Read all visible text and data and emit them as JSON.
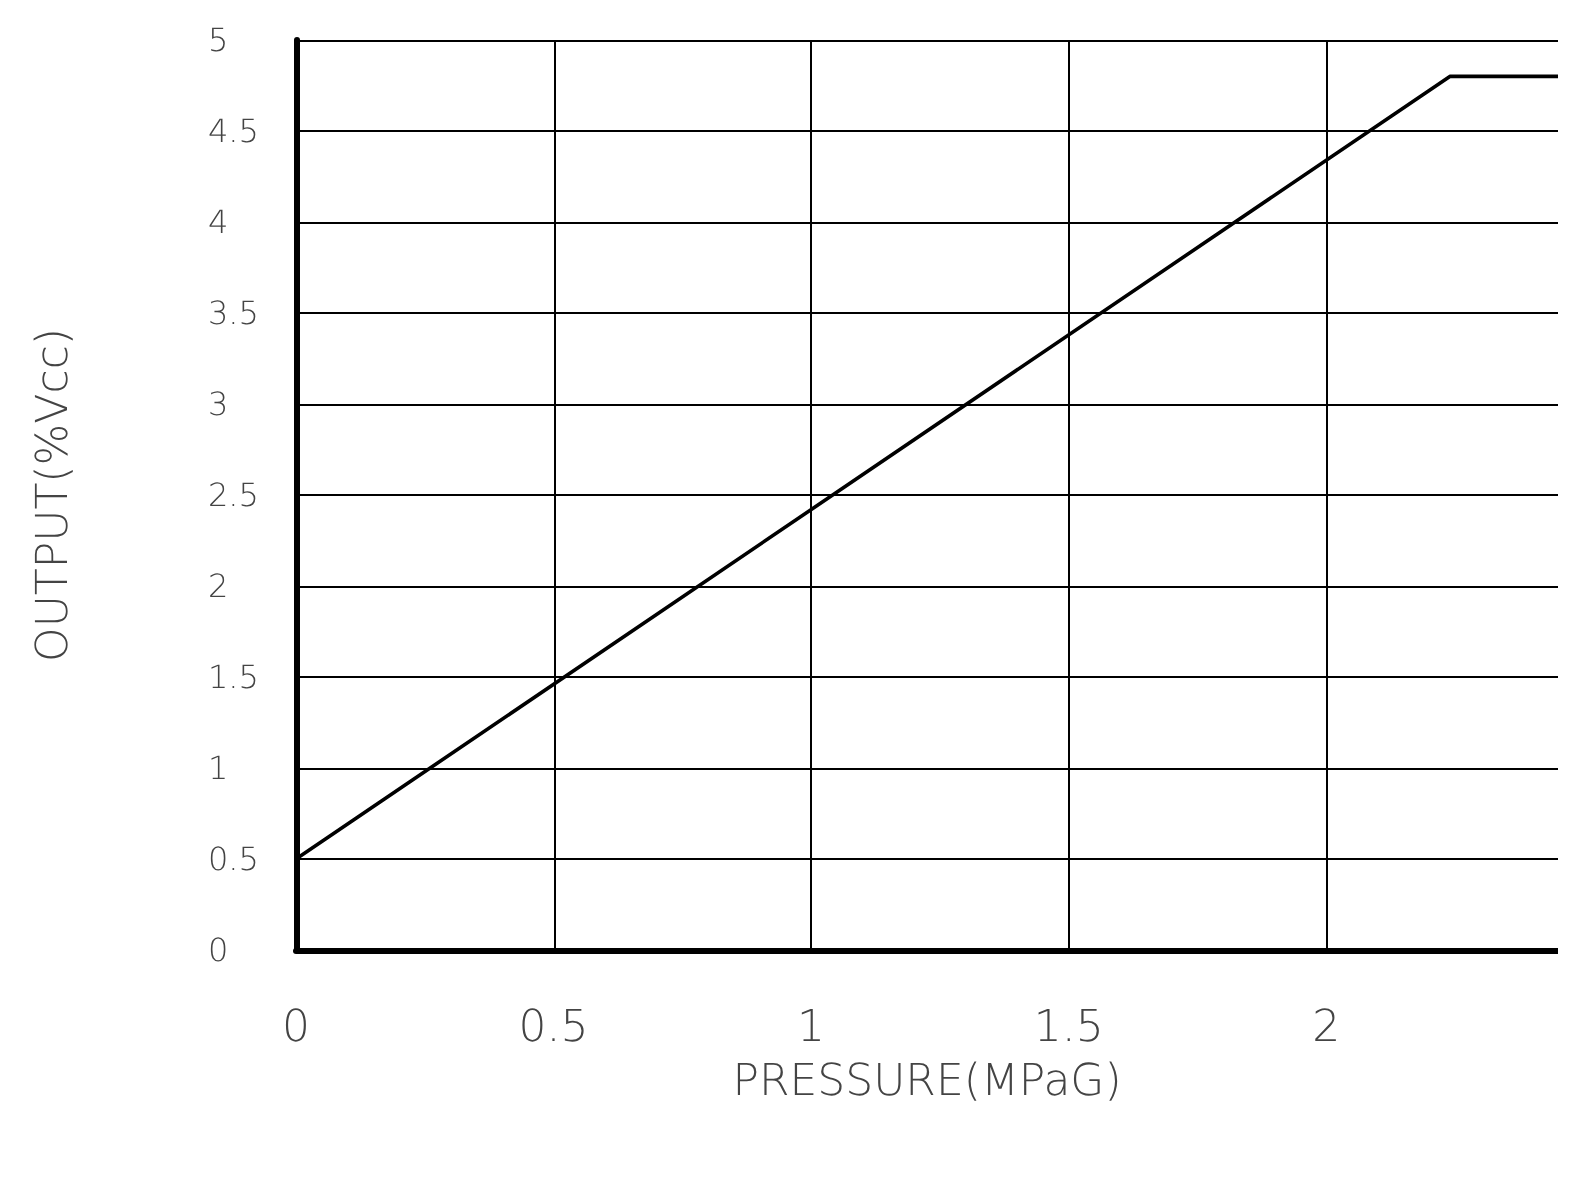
{
  "chart_data": {
    "type": "line",
    "xlabel": "PRESSURE(MPaG)",
    "ylabel": "OUTPUT(%Vcc)",
    "x": [
      0,
      2.24,
      2.45
    ],
    "series": [
      {
        "color": "#000000",
        "values": [
          0.5,
          4.8,
          4.8
        ]
      }
    ],
    "xlim": [
      0,
      2.45
    ],
    "xticks": [
      0,
      0.5,
      1,
      1.5,
      2
    ],
    "ylim": [
      0,
      5
    ],
    "yticks": [
      0,
      0.5,
      1,
      1.5,
      2,
      2.5,
      3,
      3.5,
      4,
      4.5,
      5
    ],
    "grid": true,
    "marker": "none",
    "line_style": "solid"
  }
}
